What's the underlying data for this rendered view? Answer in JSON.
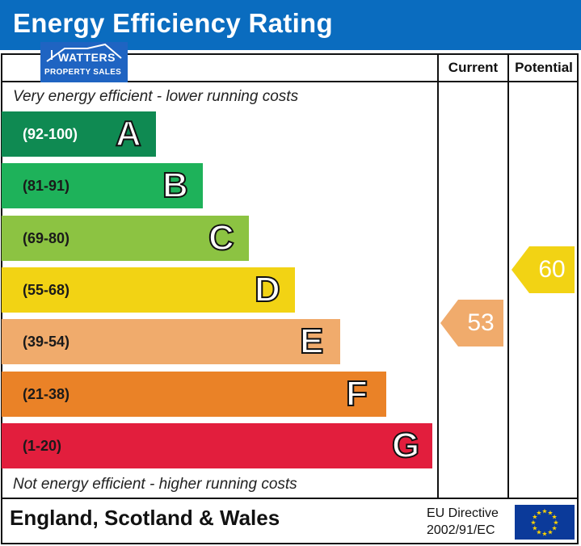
{
  "header": {
    "title": "Energy Efficiency Rating"
  },
  "logo": {
    "name": "WATTERS",
    "subtitle": "PROPERTY SALES"
  },
  "columns": {
    "current": "Current",
    "potential": "Potential"
  },
  "captions": {
    "top": "Very energy efficient - lower running costs",
    "bottom": "Not energy efficient - higher running costs"
  },
  "footer": {
    "region": "England, Scotland & Wales",
    "eu_line1": "EU Directive",
    "eu_line2": "2002/91/EC"
  },
  "chart_data": {
    "type": "bar",
    "categories": [
      "A",
      "B",
      "C",
      "D",
      "E",
      "F",
      "G"
    ],
    "bands": [
      {
        "letter": "A",
        "range": "(92-100)",
        "color": "#0f8a52"
      },
      {
        "letter": "B",
        "range": "(81-91)",
        "color": "#1eb25a"
      },
      {
        "letter": "C",
        "range": "(69-80)",
        "color": "#8cc342"
      },
      {
        "letter": "D",
        "range": "(55-68)",
        "color": "#f2d314"
      },
      {
        "letter": "E",
        "range": "(39-54)",
        "color": "#f0ab6c"
      },
      {
        "letter": "F",
        "range": "(21-38)",
        "color": "#ea8227"
      },
      {
        "letter": "G",
        "range": "(1-20)",
        "color": "#e21e3d"
      }
    ],
    "current": {
      "value": "53",
      "band": "E",
      "color": "#f0ab6c"
    },
    "potential": {
      "value": "60",
      "band": "D",
      "color": "#f2d314"
    }
  }
}
